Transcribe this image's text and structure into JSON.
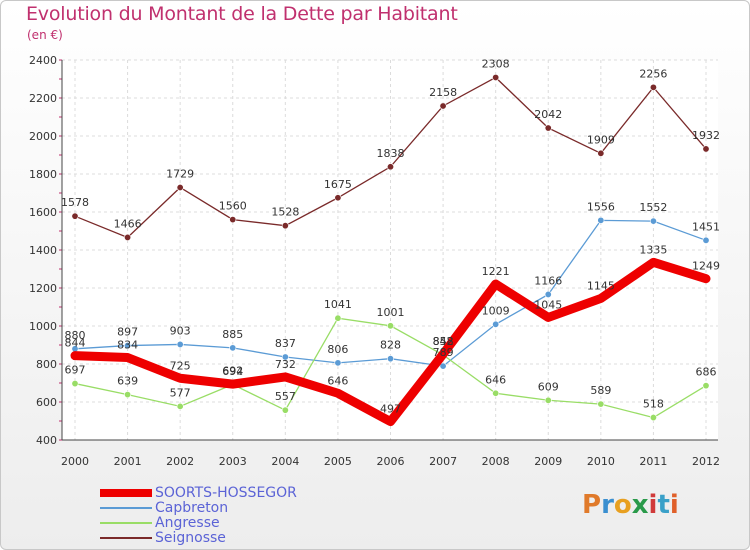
{
  "title": "Evolution du Montant de la Dette par Habitant",
  "subtitle": "(en €)",
  "brand": "Proxiti",
  "chart_data": {
    "type": "line",
    "x": [
      2000,
      2001,
      2002,
      2003,
      2004,
      2005,
      2006,
      2007,
      2008,
      2009,
      2010,
      2011,
      2012
    ],
    "ylim": [
      400,
      2400
    ],
    "yticks": [
      400,
      600,
      800,
      1000,
      1200,
      1400,
      1600,
      1800,
      2000,
      2200,
      2400
    ],
    "grid": true,
    "legend_position": "bottom-left",
    "series": [
      {
        "name": "SOORTS-HOSSEGOR",
        "color": "#ee0000",
        "values": [
          844,
          834,
          725,
          694,
          732,
          646,
          497,
          852,
          1221,
          1045,
          1145,
          1335,
          1249
        ]
      },
      {
        "name": "Capbreton",
        "color": "#5b9bd5",
        "values": [
          880,
          897,
          903,
          885,
          837,
          806,
          828,
          789,
          1009,
          1166,
          1556,
          1552,
          1451
        ]
      },
      {
        "name": "Angresse",
        "color": "#99dd66",
        "values": [
          697,
          639,
          577,
          692,
          557,
          1041,
          1001,
          848,
          646,
          609,
          589,
          518,
          686
        ]
      },
      {
        "name": "Seignosse",
        "color": "#7a2a2a",
        "values": [
          1578,
          1466,
          1729,
          1560,
          1528,
          1675,
          1838,
          2158,
          2308,
          2042,
          1909,
          2256,
          1932
        ]
      }
    ]
  }
}
